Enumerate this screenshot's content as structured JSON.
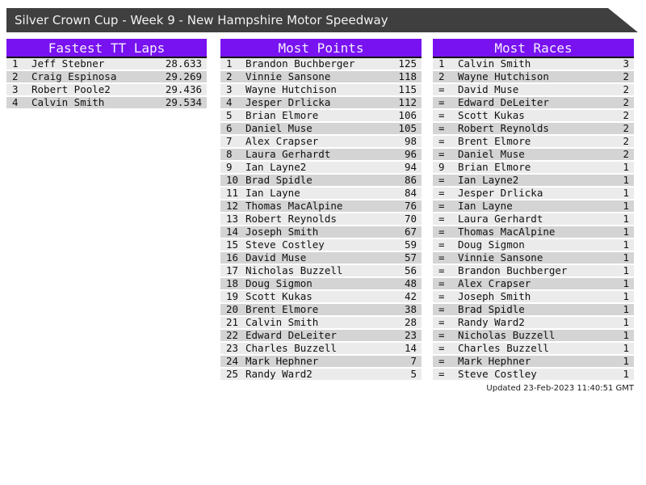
{
  "title_bar": {
    "text": "Silver Crown Cup - Week 9 - New Hampshire Motor Speedway"
  },
  "colors": {
    "title_bar_bg": "#3f3f3f",
    "table_header_bg": "#7812f0",
    "row_light": "#ebebeb",
    "row_dark": "#d4d4d4",
    "header_separator": "#141414"
  },
  "tables": [
    {
      "id": "fastest-tt-laps",
      "title": "Fastest TT Laps",
      "rows": [
        {
          "rank": "1",
          "name": "Jeff Stebner",
          "value": "28.633"
        },
        {
          "rank": "2",
          "name": "Craig Espinosa",
          "value": "29.269"
        },
        {
          "rank": "3",
          "name": "Robert Poole2",
          "value": "29.436"
        },
        {
          "rank": "4",
          "name": "Calvin Smith",
          "value": "29.534"
        }
      ]
    },
    {
      "id": "most-points",
      "title": "Most Points",
      "rows": [
        {
          "rank": "1",
          "name": "Brandon Buchberger",
          "value": "125"
        },
        {
          "rank": "2",
          "name": "Vinnie Sansone",
          "value": "118"
        },
        {
          "rank": "3",
          "name": "Wayne Hutchison",
          "value": "115"
        },
        {
          "rank": "4",
          "name": "Jesper Drlicka",
          "value": "112"
        },
        {
          "rank": "5",
          "name": "Brian Elmore",
          "value": "106"
        },
        {
          "rank": "6",
          "name": "Daniel Muse",
          "value": "105"
        },
        {
          "rank": "7",
          "name": "Alex Crapser",
          "value": "98"
        },
        {
          "rank": "8",
          "name": "Laura Gerhardt",
          "value": "96"
        },
        {
          "rank": "9",
          "name": "Ian Layne2",
          "value": "94"
        },
        {
          "rank": "10",
          "name": "Brad Spidle",
          "value": "86"
        },
        {
          "rank": "11",
          "name": "Ian Layne",
          "value": "84"
        },
        {
          "rank": "12",
          "name": "Thomas MacAlpine",
          "value": "76"
        },
        {
          "rank": "13",
          "name": "Robert Reynolds",
          "value": "70"
        },
        {
          "rank": "14",
          "name": "Joseph Smith",
          "value": "67"
        },
        {
          "rank": "15",
          "name": "Steve Costley",
          "value": "59"
        },
        {
          "rank": "16",
          "name": "David Muse",
          "value": "57"
        },
        {
          "rank": "17",
          "name": "Nicholas Buzzell",
          "value": "56"
        },
        {
          "rank": "18",
          "name": "Doug Sigmon",
          "value": "48"
        },
        {
          "rank": "19",
          "name": "Scott Kukas",
          "value": "42"
        },
        {
          "rank": "20",
          "name": "Brent Elmore",
          "value": "38"
        },
        {
          "rank": "21",
          "name": "Calvin Smith",
          "value": "28"
        },
        {
          "rank": "22",
          "name": "Edward DeLeiter",
          "value": "23"
        },
        {
          "rank": "23",
          "name": "Charles Buzzell",
          "value": "14"
        },
        {
          "rank": "24",
          "name": "Mark Hephner",
          "value": "7"
        },
        {
          "rank": "25",
          "name": "Randy Ward2",
          "value": "5"
        }
      ]
    },
    {
      "id": "most-races",
      "title": "Most Races",
      "rows": [
        {
          "rank": "1",
          "name": "Calvin Smith",
          "value": "3"
        },
        {
          "rank": "2",
          "name": "Wayne Hutchison",
          "value": "2"
        },
        {
          "rank": "=",
          "name": "David Muse",
          "value": "2"
        },
        {
          "rank": "=",
          "name": "Edward DeLeiter",
          "value": "2"
        },
        {
          "rank": "=",
          "name": "Scott Kukas",
          "value": "2"
        },
        {
          "rank": "=",
          "name": "Robert Reynolds",
          "value": "2"
        },
        {
          "rank": "=",
          "name": "Brent Elmore",
          "value": "2"
        },
        {
          "rank": "=",
          "name": "Daniel Muse",
          "value": "2"
        },
        {
          "rank": "9",
          "name": "Brian Elmore",
          "value": "1"
        },
        {
          "rank": "=",
          "name": "Ian Layne2",
          "value": "1"
        },
        {
          "rank": "=",
          "name": "Jesper Drlicka",
          "value": "1"
        },
        {
          "rank": "=",
          "name": "Ian Layne",
          "value": "1"
        },
        {
          "rank": "=",
          "name": "Laura Gerhardt",
          "value": "1"
        },
        {
          "rank": "=",
          "name": "Thomas MacAlpine",
          "value": "1"
        },
        {
          "rank": "=",
          "name": "Doug Sigmon",
          "value": "1"
        },
        {
          "rank": "=",
          "name": "Vinnie Sansone",
          "value": "1"
        },
        {
          "rank": "=",
          "name": "Brandon Buchberger",
          "value": "1"
        },
        {
          "rank": "=",
          "name": "Alex Crapser",
          "value": "1"
        },
        {
          "rank": "=",
          "name": "Joseph Smith",
          "value": "1"
        },
        {
          "rank": "=",
          "name": "Brad Spidle",
          "value": "1"
        },
        {
          "rank": "=",
          "name": "Randy Ward2",
          "value": "1"
        },
        {
          "rank": "=",
          "name": "Nicholas Buzzell",
          "value": "1"
        },
        {
          "rank": "=",
          "name": "Charles Buzzell",
          "value": "1"
        },
        {
          "rank": "=",
          "name": "Mark Hephner",
          "value": "1"
        },
        {
          "rank": "=",
          "name": "Steve Costley",
          "value": "1"
        }
      ]
    }
  ],
  "footer": {
    "updated": "Updated 23-Feb-2023 11:40:51 GMT"
  }
}
